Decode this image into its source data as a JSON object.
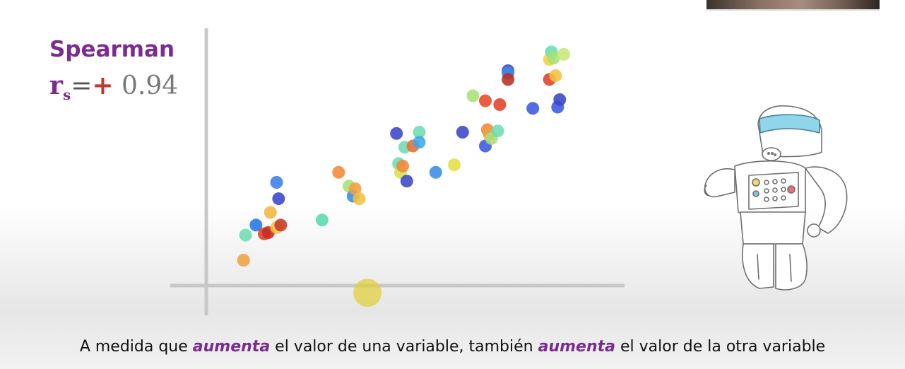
{
  "heading": {
    "method": "Spearman",
    "symbol": "r",
    "subscript": "s",
    "equals": "=",
    "sign": "+",
    "value": "0.94"
  },
  "caption": {
    "part1": "A medida que ",
    "emph1": "aumenta",
    "part2": " el valor de una variable, también ",
    "emph2": "aumenta",
    "part3": " el valor de la otra variable"
  },
  "colors": {
    "accent": "#7b2c8f",
    "sign": "#c0392b"
  },
  "icons": [
    "robot-illustration"
  ],
  "chart_data": {
    "type": "scatter",
    "title": "",
    "xlabel": "",
    "ylabel": "",
    "xlim": [
      0,
      100
    ],
    "ylim": [
      0,
      100
    ],
    "grid": false,
    "points": [
      {
        "x": 8.5,
        "y": 9.0,
        "color": "#f0a040"
      },
      {
        "x": 9.0,
        "y": 19.0,
        "color": "#6ddcaf"
      },
      {
        "x": 11.5,
        "y": 23.0,
        "color": "#1f77e4"
      },
      {
        "x": 15.0,
        "y": 28.0,
        "color": "#f2b640"
      },
      {
        "x": 16.5,
        "y": 40.0,
        "color": "#3b7bef"
      },
      {
        "x": 17.0,
        "y": 33.5,
        "color": "#3b46c8"
      },
      {
        "x": 13.5,
        "y": 19.5,
        "color": "#e04028"
      },
      {
        "x": 14.5,
        "y": 20.0,
        "color": "#c82820"
      },
      {
        "x": 16.5,
        "y": 22.0,
        "color": "#f4c040"
      },
      {
        "x": 17.5,
        "y": 23.0,
        "color": "#c83828"
      },
      {
        "x": 27.5,
        "y": 25.0,
        "color": "#5ad8b0"
      },
      {
        "x": 31.5,
        "y": 44.0,
        "color": "#f08838"
      },
      {
        "x": 34.0,
        "y": 38.5,
        "color": "#a8e078"
      },
      {
        "x": 35.0,
        "y": 34.5,
        "color": "#3b8be8"
      },
      {
        "x": 35.5,
        "y": 37.5,
        "color": "#f0a040"
      },
      {
        "x": 36.5,
        "y": 33.5,
        "color": "#f4c040"
      },
      {
        "x": 45.5,
        "y": 59.5,
        "color": "#3b46c8"
      },
      {
        "x": 46.0,
        "y": 47.5,
        "color": "#6ddcaf"
      },
      {
        "x": 46.5,
        "y": 44.0,
        "color": "#d8e050"
      },
      {
        "x": 47.0,
        "y": 46.5,
        "color": "#f08838"
      },
      {
        "x": 47.5,
        "y": 54.0,
        "color": "#6ddcaf"
      },
      {
        "x": 48.0,
        "y": 40.5,
        "color": "#3b46c8"
      },
      {
        "x": 49.5,
        "y": 54.5,
        "color": "#f06a30"
      },
      {
        "x": 51.0,
        "y": 60.0,
        "color": "#6ddcaf"
      },
      {
        "x": 51.0,
        "y": 56.0,
        "color": "#3ba8e8"
      },
      {
        "x": 55.0,
        "y": 44.0,
        "color": "#3b8be8"
      },
      {
        "x": 59.5,
        "y": 47.0,
        "color": "#e4e040"
      },
      {
        "x": 61.5,
        "y": 60.0,
        "color": "#3b46c8"
      },
      {
        "x": 64.0,
        "y": 74.5,
        "color": "#a8e078"
      },
      {
        "x": 67.0,
        "y": 72.5,
        "color": "#e84828"
      },
      {
        "x": 67.0,
        "y": 54.5,
        "color": "#3b58e0"
      },
      {
        "x": 67.5,
        "y": 61.0,
        "color": "#f08838"
      },
      {
        "x": 68.0,
        "y": 59.0,
        "color": "#f0a040"
      },
      {
        "x": 68.5,
        "y": 57.5,
        "color": "#a8e078"
      },
      {
        "x": 70.0,
        "y": 60.5,
        "color": "#6ddcaf"
      },
      {
        "x": 70.5,
        "y": 71.0,
        "color": "#e04028"
      },
      {
        "x": 72.5,
        "y": 84.5,
        "color": "#3b46c8"
      },
      {
        "x": 72.5,
        "y": 83.5,
        "color": "#3b8be8"
      },
      {
        "x": 72.5,
        "y": 81.0,
        "color": "#b83020"
      },
      {
        "x": 78.5,
        "y": 69.5,
        "color": "#3b58e0"
      },
      {
        "x": 82.5,
        "y": 89.0,
        "color": "#f4d040"
      },
      {
        "x": 82.5,
        "y": 81.0,
        "color": "#e04028"
      },
      {
        "x": 83.0,
        "y": 92.0,
        "color": "#6ddcaf"
      },
      {
        "x": 83.5,
        "y": 89.5,
        "color": "#a8e078"
      },
      {
        "x": 84.0,
        "y": 82.5,
        "color": "#f4c040"
      },
      {
        "x": 84.5,
        "y": 70.0,
        "color": "#3b58e0"
      },
      {
        "x": 85.0,
        "y": 73.0,
        "color": "#3b46c8"
      },
      {
        "x": 86.0,
        "y": 91.0,
        "color": "#c8e878"
      },
      {
        "x": 38.5,
        "y": -4.0,
        "color": "#e0d040"
      }
    ]
  }
}
